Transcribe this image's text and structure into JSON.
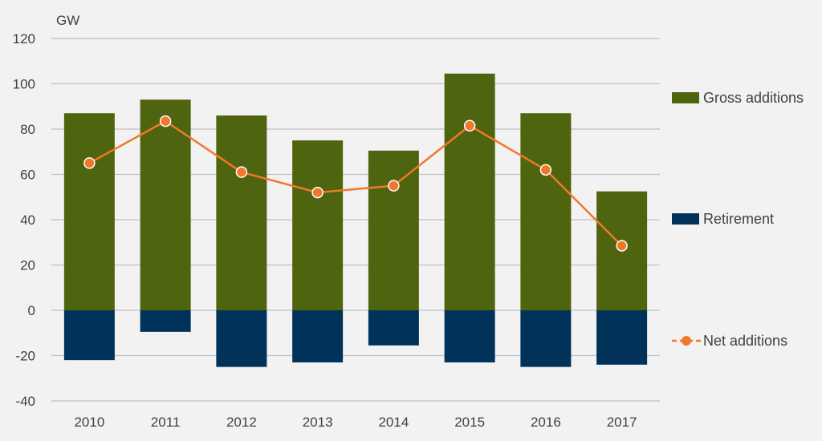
{
  "chart_data": {
    "type": "bar",
    "unit_label": "GW",
    "categories": [
      "2010",
      "2011",
      "2012",
      "2013",
      "2014",
      "2015",
      "2016",
      "2017"
    ],
    "series": [
      {
        "name": "Gross additions",
        "kind": "bar",
        "color": "#4f640e",
        "values": [
          87,
          93,
          86,
          75,
          70.5,
          104.5,
          87,
          52.5
        ]
      },
      {
        "name": "Retirement",
        "kind": "bar",
        "color": "#00325a",
        "values": [
          -22,
          -9.5,
          -25,
          -23,
          -15.5,
          -23,
          -25,
          -24
        ]
      },
      {
        "name": "Net additions",
        "kind": "line",
        "color": "#f0782d",
        "values": [
          65,
          83.5,
          61,
          52,
          55,
          81.5,
          62,
          28.5
        ]
      }
    ],
    "ylim": [
      -40,
      120
    ],
    "yticks": [
      -40,
      -20,
      0,
      20,
      40,
      60,
      80,
      100,
      120
    ],
    "grid": true,
    "legend_position": "right"
  }
}
